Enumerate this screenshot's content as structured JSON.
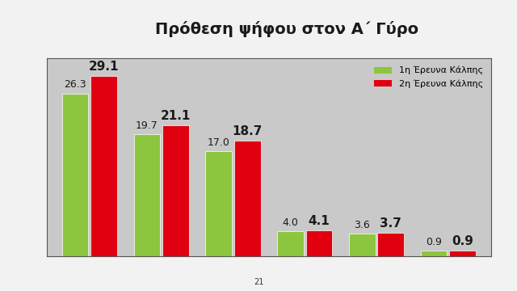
{
  "chart_data": {
    "type": "bar",
    "title": "Πρόθεση ψήφου στον Α΄ Γύρο",
    "categories": [
      null,
      null,
      null,
      null,
      null,
      null
    ],
    "series": [
      {
        "name": "1η Έρευνα Κάλπης",
        "color": "#8cc63f",
        "values": [
          26.3,
          19.7,
          17.0,
          4.0,
          3.6,
          0.9
        ]
      },
      {
        "name": "2η Έρευνα Κάλπης",
        "color": "#e0000f",
        "values": [
          29.1,
          21.1,
          18.7,
          4.1,
          3.7,
          0.9
        ]
      }
    ],
    "ylim": [
      0,
      32
    ],
    "yticks": [],
    "grid": false,
    "legend": "upper right",
    "data_labels": true,
    "tick_labels": false,
    "annotations": [
      "21"
    ]
  }
}
